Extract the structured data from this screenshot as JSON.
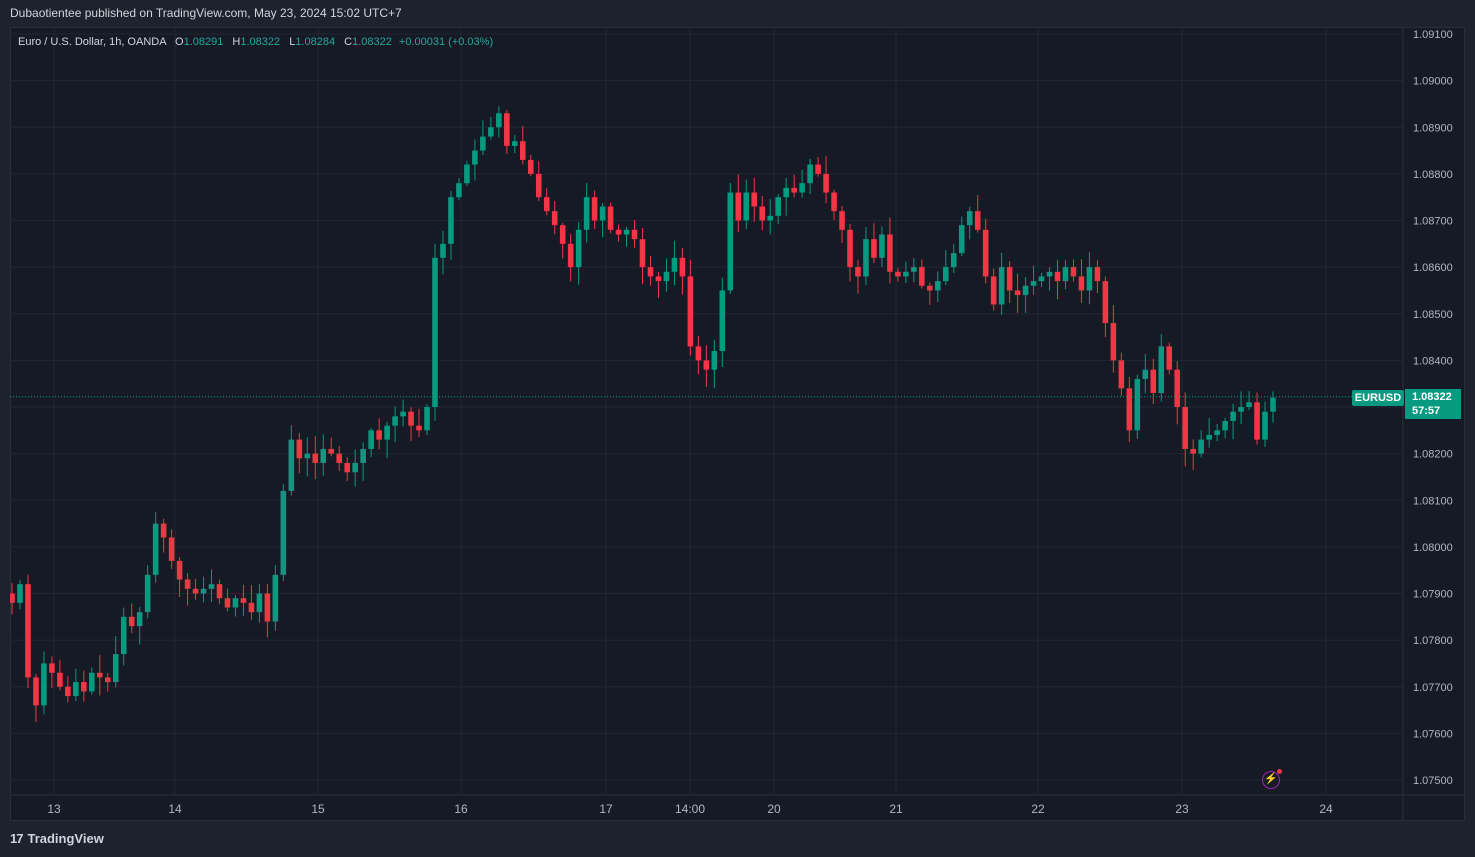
{
  "header": {
    "publish_line": "Dubaotientee published on TradingView.com, May 23, 2024 15:02 UTC+7"
  },
  "legend": {
    "symbol": "Euro / U.S. Dollar, 1h, OANDA",
    "open_label": "O",
    "open": "1.08291",
    "high_label": "H",
    "high": "1.08322",
    "low_label": "L",
    "low": "1.08284",
    "close_label": "C",
    "close": "1.08322",
    "change": "+0.00031 (+0.03%)"
  },
  "price_tags": {
    "symbol": "EURUSD",
    "last_price": "1.08322",
    "countdown": "57:57"
  },
  "footer": {
    "brand": "TradingView",
    "logo": "17"
  },
  "icons": {
    "alert": "lightning-alert-icon",
    "logo": "tradingview-logo-icon"
  },
  "colors": {
    "up": "#089981",
    "down": "#f23645",
    "background": "#161a25",
    "grid": "#232632",
    "text": "#d1d4dc",
    "last_price_line": "#089981"
  },
  "chart_data": {
    "type": "candlestick",
    "symbol": "EURUSD",
    "interval": "1h",
    "y_axis_ticks": [
      "1.09100",
      "1.09000",
      "1.08900",
      "1.08800",
      "1.08700",
      "1.08600",
      "1.08500",
      "1.08400",
      "1.08300",
      "1.08200",
      "1.08100",
      "1.08000",
      "1.07900",
      "1.07800",
      "1.07700",
      "1.07600",
      "1.07500"
    ],
    "x_axis_ticks": [
      "13",
      "14",
      "15",
      "16",
      "17",
      "14:00",
      "20",
      "21",
      "22",
      "23",
      "24"
    ],
    "ylim": [
      1.0748,
      1.0914
    ],
    "last_price": 1.08322,
    "grid": true,
    "ohlc_path": [
      {
        "t": "13",
        "points": [
          1.0788,
          1.0792,
          1.0772,
          1.0766,
          1.0775,
          1.0773,
          1.077,
          1.0768,
          1.0771,
          1.0769,
          1.0773,
          1.0772,
          1.0771,
          1.0777,
          1.0785,
          1.0783,
          1.0786
        ]
      },
      {
        "t": "13b",
        "points": [
          1.0794,
          1.0805,
          1.0802,
          1.0797,
          1.0793,
          1.0791,
          1.079,
          1.0791,
          1.0792,
          1.0789,
          1.0787,
          1.0789,
          1.0788,
          1.0786,
          1.079,
          1.0784
        ]
      },
      {
        "t": "14b",
        "points": [
          1.0794,
          1.0812,
          1.0823,
          1.0819,
          1.082,
          1.0818,
          1.0821,
          1.082,
          1.0818,
          1.0816,
          1.0818,
          1.0821,
          1.0825,
          1.0823,
          1.0826,
          1.0828,
          1.0829,
          1.0826,
          1.0825,
          1.083
        ]
      },
      {
        "t": "15b",
        "points": [
          1.0862,
          1.0865,
          1.0875,
          1.0878,
          1.0882,
          1.0885,
          1.0888,
          1.089,
          1.0893,
          1.0886,
          1.0887,
          1.0883,
          1.088,
          1.0875,
          1.0872,
          1.0869,
          1.0865,
          1.086,
          1.0868,
          1.0875,
          1.087,
          1.0873,
          1.0868,
          1.0867,
          1.0868,
          1.0866,
          1.086
        ]
      },
      {
        "t": "17b",
        "points": [
          1.0858,
          1.0857,
          1.0859,
          1.0862,
          1.0858,
          1.0843,
          1.084,
          1.0838,
          1.0842,
          1.0855,
          1.0876,
          1.087,
          1.0876,
          1.0873,
          1.087,
          1.0871,
          1.0875,
          1.0877,
          1.0876,
          1.0878,
          1.0882,
          1.088,
          1.0876,
          1.0872,
          1.0868,
          1.086,
          1.0858,
          1.0866,
          1.0862,
          1.0867,
          1.0859,
          1.0858,
          1.0859,
          1.086,
          1.0856,
          1.0855,
          1.0857,
          1.086,
          1.0863,
          1.0869,
          1.0872,
          1.0868,
          1.0858,
          1.0852,
          1.086,
          1.0855,
          1.0854,
          1.0856,
          1.0857,
          1.0858,
          1.0859,
          1.0857,
          1.086,
          1.0858,
          1.0855,
          1.086,
          1.0857,
          1.0848,
          1.084,
          1.0834,
          1.0825,
          1.0836,
          1.0838,
          1.0833,
          1.0843,
          1.0838,
          1.083,
          1.0821,
          1.082,
          1.0823,
          1.0824,
          1.0825,
          1.0827,
          1.0829,
          1.083,
          1.0831,
          1.0823,
          1.0829,
          1.0832
        ]
      }
    ],
    "notes_on_values": "values estimated from gridlines; ohlc_path lists approximate close values left to right"
  }
}
